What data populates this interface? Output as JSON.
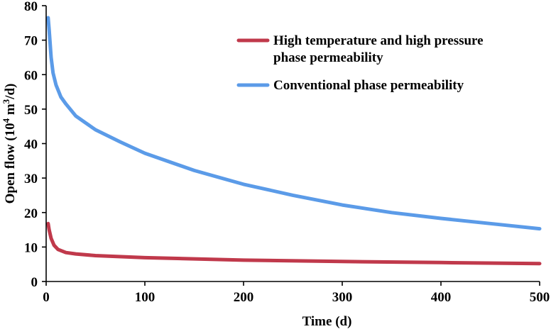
{
  "chart_data": {
    "type": "line",
    "title": "",
    "xlabel": "Time (d)",
    "ylabel_main": "Open flow (10",
    "ylabel_sup": "4",
    "ylabel_rest": " m",
    "ylabel_sup2": "3",
    "ylabel_end": "/d)",
    "xlim": [
      0,
      500
    ],
    "ylim": [
      0,
      80
    ],
    "xticks": [
      0,
      100,
      200,
      300,
      400,
      500
    ],
    "yticks": [
      0,
      10,
      20,
      30,
      40,
      50,
      60,
      70,
      80
    ],
    "grid": false,
    "legend_position": "top-right",
    "series": [
      {
        "name_line1": "High temperature and high pressure",
        "name_line2": "phase permeability",
        "color": "#C0394B",
        "x": [
          2,
          3,
          5,
          8,
          12,
          20,
          30,
          50,
          100,
          200,
          300,
          400,
          500
        ],
        "y": [
          16.8,
          15.0,
          12.5,
          10.5,
          9.3,
          8.4,
          8.0,
          7.5,
          6.9,
          6.2,
          5.8,
          5.5,
          5.2
        ]
      },
      {
        "name_line1": "Conventional phase permeability",
        "name_line2": "",
        "color": "#5B9BE8",
        "x": [
          2,
          3,
          5,
          7,
          10,
          15,
          20,
          30,
          40,
          50,
          75,
          100,
          150,
          200,
          250,
          300,
          350,
          400,
          450,
          500
        ],
        "y": [
          76.5,
          73,
          65,
          60.5,
          57,
          53.5,
          51.5,
          48,
          46,
          44,
          40.5,
          37.2,
          32.2,
          28.2,
          25,
          22.2,
          20,
          18.3,
          16.8,
          15.3
        ]
      }
    ]
  }
}
